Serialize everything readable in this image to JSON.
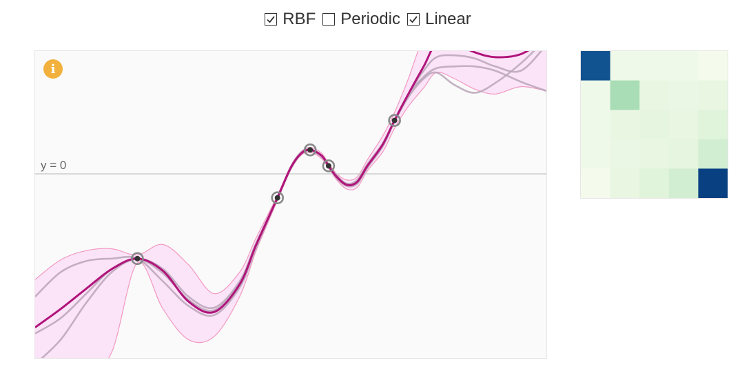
{
  "toolbar": {
    "kernels": [
      {
        "label": "RBF",
        "checked": true
      },
      {
        "label": "Periodic",
        "checked": false
      },
      {
        "label": "Linear",
        "checked": true
      }
    ]
  },
  "plot": {
    "info_icon_glyph": "i",
    "info_icon_color": "#f1b13c",
    "mean_color": "#b0147a",
    "band_fill": "#fbe3f8",
    "band_stroke": "#f29ac0",
    "sample_color": "#b8a5b8",
    "baseline_label": "y = 0"
  },
  "chart_data": {
    "type": "line",
    "title": "",
    "xlabel": "",
    "ylabel": "",
    "xlim": [
      0,
      10
    ],
    "ylim": [
      -3,
      2
    ],
    "baseline": 0,
    "observations": [
      {
        "x": 2.0,
        "y": -1.38
      },
      {
        "x": 4.74,
        "y": -0.39
      },
      {
        "x": 5.38,
        "y": 0.39
      },
      {
        "x": 5.74,
        "y": 0.13
      },
      {
        "x": 7.03,
        "y": 0.87
      }
    ],
    "series": [
      {
        "role": "mean",
        "x": [
          0,
          0.5,
          1.0,
          1.5,
          2.0,
          2.5,
          3.0,
          3.5,
          4.0,
          4.3,
          4.5,
          4.74,
          5.0,
          5.2,
          5.38,
          5.6,
          5.74,
          5.9,
          6.1,
          6.3,
          6.5,
          6.8,
          7.03,
          7.3,
          7.6,
          7.85,
          8.2,
          8.6,
          9.0,
          9.5,
          10.0
        ],
        "y": [
          -2.5,
          -2.2,
          -1.87,
          -1.55,
          -1.38,
          -1.58,
          -2.08,
          -2.25,
          -1.8,
          -1.2,
          -0.83,
          -0.39,
          0.1,
          0.33,
          0.39,
          0.3,
          0.13,
          -0.05,
          -0.18,
          -0.13,
          0.13,
          0.48,
          0.87,
          1.3,
          1.75,
          2.12,
          2.12,
          1.98,
          1.9,
          1.95,
          2.2
        ]
      }
    ],
    "band": {
      "x": [
        0,
        0.5,
        1.0,
        1.5,
        2.0,
        2.5,
        3.0,
        3.5,
        4.0,
        4.3,
        4.5,
        4.74,
        5.0,
        5.2,
        5.38,
        5.6,
        5.74,
        5.9,
        6.1,
        6.3,
        6.5,
        6.8,
        7.03,
        7.3,
        7.6,
        7.85,
        8.2,
        8.6,
        9.0,
        9.5,
        10.0
      ],
      "upper": [
        -1.72,
        -1.4,
        -1.25,
        -1.22,
        -1.32,
        -1.15,
        -1.48,
        -1.95,
        -1.6,
        -1.08,
        -0.75,
        -0.35,
        0.13,
        0.36,
        0.43,
        0.34,
        0.17,
        0.0,
        -0.1,
        -0.05,
        0.23,
        0.62,
        1.0,
        1.55,
        2.25,
        2.6,
        2.6,
        2.5,
        2.3,
        2.25,
        2.3
      ],
      "lower": [
        -3.3,
        -3.3,
        -3.3,
        -2.9,
        -1.45,
        -2.2,
        -2.7,
        -2.65,
        -2.0,
        -1.3,
        -0.9,
        -0.43,
        0.07,
        0.3,
        0.35,
        0.25,
        0.09,
        -0.1,
        -0.25,
        -0.22,
        0.05,
        0.36,
        0.74,
        1.1,
        1.4,
        1.65,
        1.55,
        1.38,
        1.3,
        1.42,
        1.35
      ]
    },
    "samples": [
      {
        "x": [
          0,
          0.5,
          1.0,
          1.5,
          2.0,
          2.5,
          3.0,
          3.5,
          4.0,
          4.3,
          4.5,
          4.74,
          5.0,
          5.2,
          5.38,
          5.6,
          5.74,
          5.9,
          6.1,
          6.3,
          6.5,
          6.8,
          7.03,
          7.3,
          7.6,
          7.85,
          8.2,
          8.6,
          9.0,
          9.5,
          10.0
        ],
        "y": [
          -2.0,
          -1.6,
          -1.42,
          -1.38,
          -1.38,
          -1.75,
          -2.15,
          -2.3,
          -1.85,
          -1.25,
          -0.86,
          -0.4,
          0.08,
          0.32,
          0.38,
          0.28,
          0.12,
          -0.07,
          -0.2,
          -0.16,
          0.1,
          0.45,
          0.85,
          1.25,
          1.55,
          1.65,
          1.45,
          1.32,
          1.48,
          1.8,
          2.2
        ]
      },
      {
        "x": [
          0,
          0.5,
          1.0,
          1.5,
          2.0,
          2.5,
          3.0,
          3.5,
          4.0,
          4.3,
          4.5,
          4.74,
          5.0,
          5.2,
          5.38,
          5.6,
          5.74,
          5.9,
          6.1,
          6.3,
          6.5,
          6.8,
          7.03,
          7.3,
          7.6,
          7.85,
          8.2,
          8.6,
          9.0,
          9.5,
          10.0
        ],
        "y": [
          -3.1,
          -2.7,
          -2.1,
          -1.6,
          -1.39,
          -1.62,
          -2.05,
          -2.22,
          -1.78,
          -1.19,
          -0.83,
          -0.39,
          0.1,
          0.34,
          0.4,
          0.3,
          0.14,
          -0.03,
          -0.16,
          -0.1,
          0.16,
          0.5,
          0.88,
          1.3,
          1.58,
          1.72,
          1.75,
          1.75,
          1.68,
          1.5,
          1.35
        ]
      },
      {
        "x": [
          0,
          0.5,
          1.0,
          1.5,
          2.0,
          2.5,
          3.0,
          3.5,
          4.0,
          4.3,
          4.5,
          4.74,
          5.0,
          5.2,
          5.38,
          5.6,
          5.74,
          5.9,
          6.1,
          6.3,
          6.5,
          6.8,
          7.03,
          7.3,
          7.6,
          7.85,
          8.2,
          8.6,
          9.0,
          9.5,
          10.0
        ],
        "y": [
          -2.6,
          -2.35,
          -1.95,
          -1.55,
          -1.38,
          -1.55,
          -2.0,
          -2.18,
          -1.75,
          -1.17,
          -0.81,
          -0.38,
          0.11,
          0.35,
          0.4,
          0.3,
          0.13,
          -0.04,
          -0.17,
          -0.12,
          0.14,
          0.48,
          0.86,
          1.3,
          1.68,
          1.9,
          1.93,
          1.88,
          1.75,
          1.68,
          2.1
        ]
      }
    ],
    "covariance_heatmap": {
      "type": "heatmap",
      "size": 5,
      "values": [
        [
          0.95,
          0.05,
          0.05,
          0.05,
          0.02
        ],
        [
          0.05,
          0.35,
          0.1,
          0.08,
          0.1
        ],
        [
          0.05,
          0.1,
          0.12,
          0.1,
          0.15
        ],
        [
          0.05,
          0.08,
          0.1,
          0.12,
          0.2
        ],
        [
          0.02,
          0.1,
          0.15,
          0.2,
          1.0
        ]
      ]
    }
  }
}
